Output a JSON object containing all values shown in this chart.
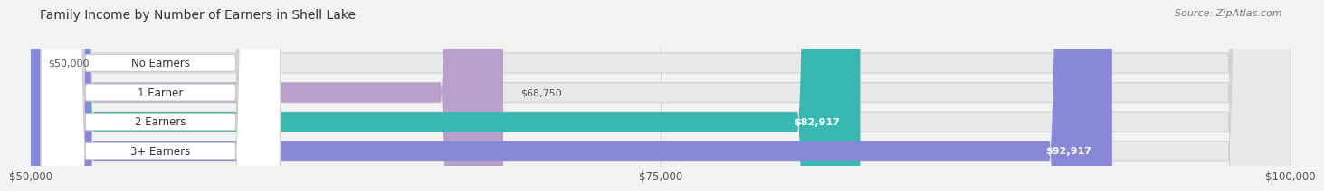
{
  "title": "Family Income by Number of Earners in Shell Lake",
  "source": "Source: ZipAtlas.com",
  "categories": [
    "No Earners",
    "1 Earner",
    "2 Earners",
    "3+ Earners"
  ],
  "values": [
    50000,
    68750,
    82917,
    92917
  ],
  "bar_colors": [
    "#aac8e8",
    "#b8a0c8",
    "#38b8b0",
    "#8888d8"
  ],
  "label_colors": [
    "#444444",
    "#444444",
    "#ffffff",
    "#ffffff"
  ],
  "x_min": 50000,
  "x_max": 100000,
  "x_ticks": [
    50000,
    75000,
    100000
  ],
  "x_tick_labels": [
    "$50,000",
    "$75,000",
    "$100,000"
  ],
  "value_labels": [
    "$50,000",
    "$68,750",
    "$82,917",
    "$92,917"
  ],
  "bg_color": "#f2f2f2",
  "bar_bg_color": "#e8e8e8",
  "bar_bg_edge": "#d0d0d0",
  "title_fontsize": 10,
  "source_fontsize": 8,
  "label_fontsize": 8.5,
  "value_fontsize": 8,
  "tick_fontsize": 8.5
}
